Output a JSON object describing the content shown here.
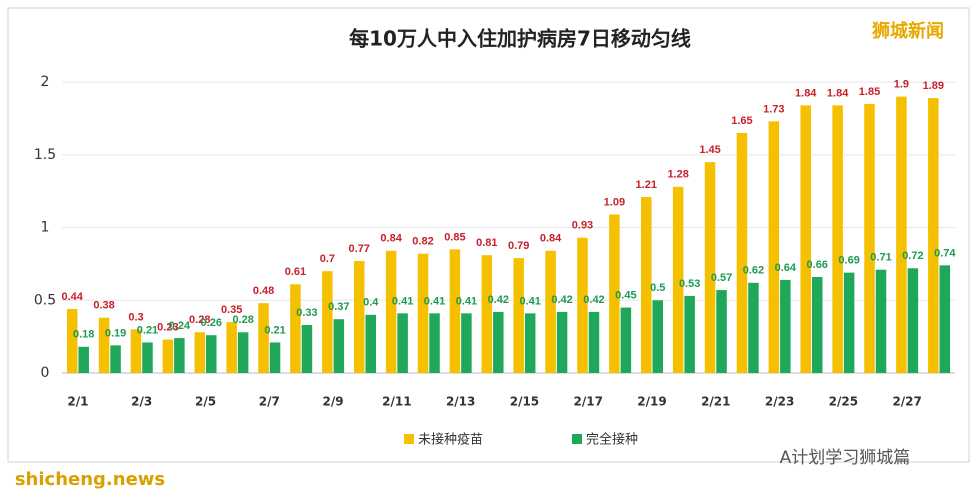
{
  "chart_data": {
    "type": "bar",
    "title": "每10万人中入住加护病房7日移动匀线",
    "watermarks": [
      "狮城新闻",
      "A计划学习狮城篇",
      "shicheng.news"
    ],
    "categories": [
      "2/1",
      null,
      "2/3",
      null,
      "2/5",
      null,
      "2/7",
      null,
      "2/9",
      null,
      "2/11",
      null,
      "2/13",
      null,
      "2/15",
      null,
      "2/17",
      null,
      "2/19",
      null,
      "2/21",
      null,
      "2/23",
      null,
      "2/25",
      null,
      "2/27",
      null
    ],
    "series": [
      {
        "name": "未接种疫苗",
        "color": "#f5c000",
        "label_color": "#c8202a",
        "values": [
          0.44,
          0.38,
          0.3,
          0.23,
          0.28,
          0.35,
          0.48,
          0.61,
          0.7,
          0.77,
          0.84,
          0.82,
          0.85,
          0.81,
          0.79,
          0.84,
          0.93,
          1.09,
          1.21,
          1.28,
          1.45,
          1.65,
          1.73,
          1.84,
          1.84,
          1.85,
          1.9,
          1.89
        ]
      },
      {
        "name": "完全接种",
        "color": "#1fa85a",
        "label_color": "#1f9a50",
        "values": [
          0.18,
          0.19,
          0.21,
          0.24,
          0.26,
          0.28,
          0.21,
          0.33,
          0.37,
          0.4,
          0.41,
          0.41,
          0.41,
          0.42,
          0.41,
          0.42,
          0.42,
          0.45,
          0.5,
          0.53,
          0.57,
          0.62,
          0.64,
          0.66,
          0.69,
          0.71,
          0.72,
          0.74
        ]
      }
    ],
    "ylim": [
      0,
      2.2
    ],
    "yticks": [
      0,
      0.5,
      1,
      1.5,
      2
    ],
    "grid": true
  }
}
